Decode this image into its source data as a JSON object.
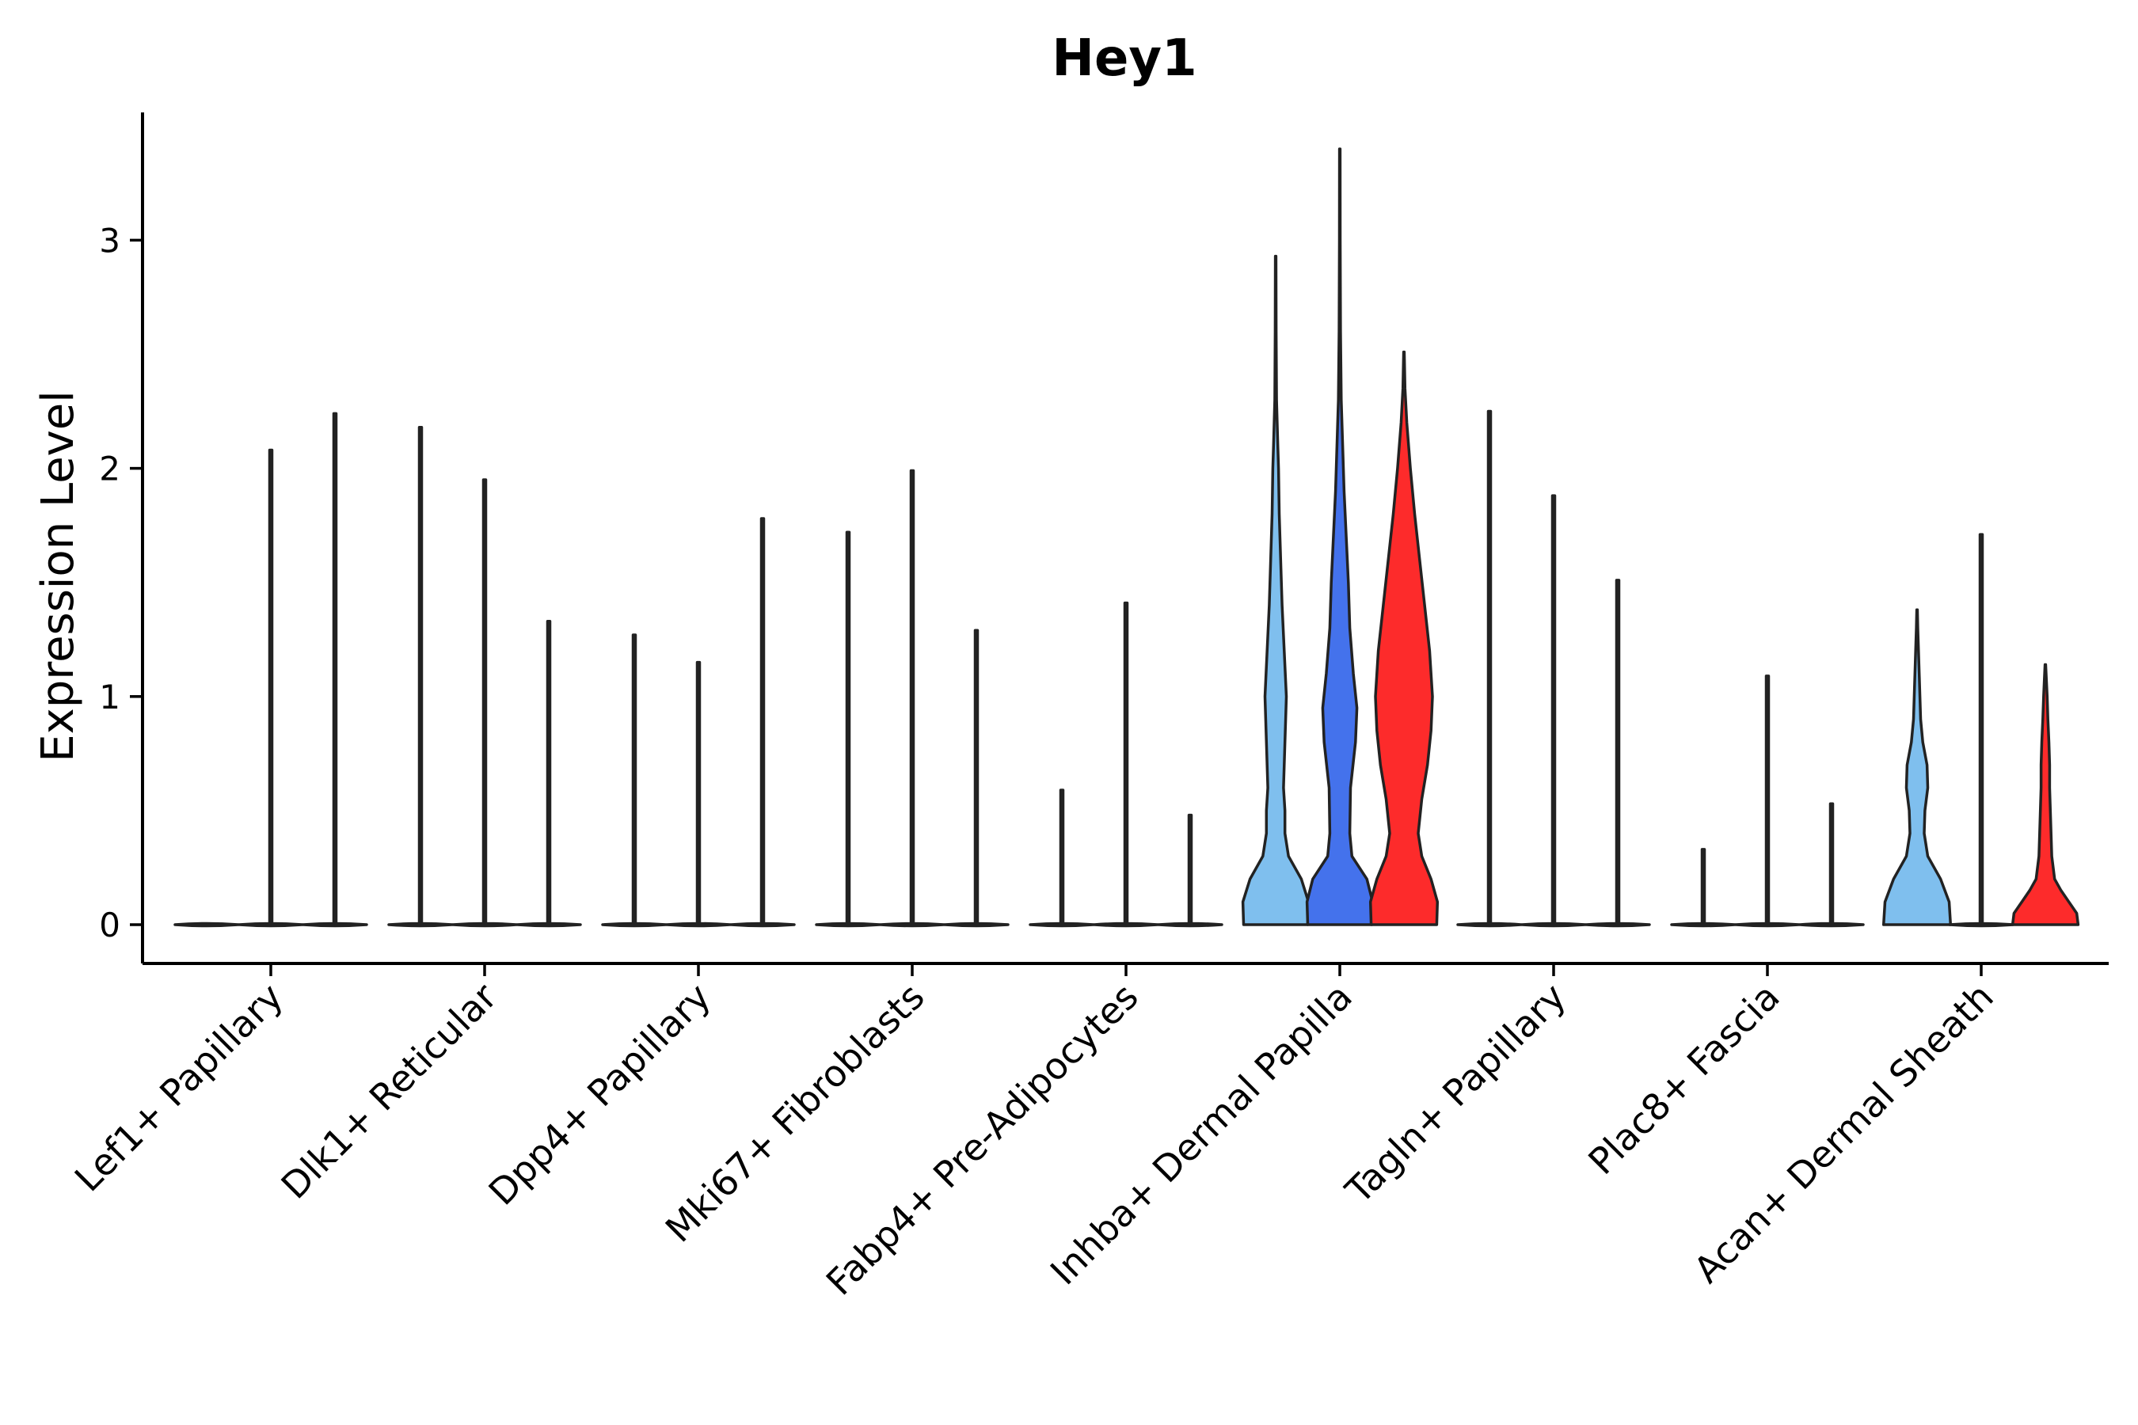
{
  "chart_data": {
    "type": "violin",
    "title": "Hey1",
    "xlabel": "",
    "ylabel": "Expression Level",
    "ylim": [
      -0.17,
      3.56
    ],
    "yticks": [
      0,
      1,
      2,
      3
    ],
    "grid": false,
    "legend": "none",
    "colors": {
      "light": "#7fbfee",
      "mid": "#4472ec",
      "red": "#fd2b2b",
      "stroke": "#222222"
    },
    "categories": [
      "Lef1+ Papillary",
      "Dlk1+ Reticular",
      "Dpp4+ Papillary",
      "Mki67+ Fibroblasts",
      "Fabp4+ Pre-Adipocytes",
      "Inhba+ Dermal Papilla",
      "Tagln+ Papillary",
      "Plac8+ Fascia",
      "Acan+ Dermal Sheath"
    ],
    "groups": [
      {
        "category": "Lef1+ Papillary",
        "violins": [
          {
            "max": 0.0,
            "color": "light",
            "shape": "flat"
          },
          {
            "max": 2.08,
            "color": "mid",
            "shape": "flat"
          },
          {
            "max": 2.24,
            "color": "red",
            "shape": "flat"
          }
        ]
      },
      {
        "category": "Dlk1+ Reticular",
        "violins": [
          {
            "max": 2.18,
            "color": "light",
            "shape": "flat"
          },
          {
            "max": 1.95,
            "color": "mid",
            "shape": "flat"
          },
          {
            "max": 1.33,
            "color": "red",
            "shape": "flat"
          }
        ]
      },
      {
        "category": "Dpp4+ Papillary",
        "violins": [
          {
            "max": 1.27,
            "color": "light",
            "shape": "flat"
          },
          {
            "max": 1.15,
            "color": "mid",
            "shape": "flat"
          },
          {
            "max": 1.78,
            "color": "red",
            "shape": "flat"
          }
        ]
      },
      {
        "category": "Mki67+ Fibroblasts",
        "violins": [
          {
            "max": 1.72,
            "color": "light",
            "shape": "flat"
          },
          {
            "max": 1.99,
            "color": "mid",
            "shape": "flat"
          },
          {
            "max": 1.29,
            "color": "red",
            "shape": "flat"
          }
        ]
      },
      {
        "category": "Fabp4+ Pre-Adipocytes",
        "violins": [
          {
            "max": 0.59,
            "color": "light",
            "shape": "flat"
          },
          {
            "max": 1.41,
            "color": "mid",
            "shape": "flat"
          },
          {
            "max": 0.48,
            "color": "red",
            "shape": "flat"
          }
        ]
      },
      {
        "category": "Inhba+ Dermal Papilla",
        "violins": [
          {
            "max": 2.93,
            "color": "light",
            "shape": "inhba1"
          },
          {
            "max": 3.4,
            "color": "mid",
            "shape": "inhba2"
          },
          {
            "max": 2.51,
            "color": "red",
            "shape": "inhba3"
          }
        ]
      },
      {
        "category": "Tagln+ Papillary",
        "violins": [
          {
            "max": 2.25,
            "color": "light",
            "shape": "flat"
          },
          {
            "max": 1.88,
            "color": "mid",
            "shape": "flat"
          },
          {
            "max": 1.51,
            "color": "red",
            "shape": "flat"
          }
        ]
      },
      {
        "category": "Plac8+ Fascia",
        "violins": [
          {
            "max": 0.33,
            "color": "light",
            "shape": "flat"
          },
          {
            "max": 1.09,
            "color": "mid",
            "shape": "flat"
          },
          {
            "max": 0.53,
            "color": "red",
            "shape": "flat"
          }
        ]
      },
      {
        "category": "Acan+ Dermal Sheath",
        "violins": [
          {
            "max": 1.38,
            "color": "light",
            "shape": "acan1"
          },
          {
            "max": 1.71,
            "color": "mid",
            "shape": "flat"
          },
          {
            "max": 1.14,
            "color": "red",
            "shape": "acan3"
          }
        ]
      }
    ],
    "shapes": {
      "inhba1": [
        [
          0,
          0.45
        ],
        [
          0.1,
          0.46
        ],
        [
          0.2,
          0.36
        ],
        [
          0.3,
          0.18
        ],
        [
          0.4,
          0.13
        ],
        [
          0.5,
          0.13
        ],
        [
          0.6,
          0.11
        ],
        [
          0.8,
          0.13
        ],
        [
          1.0,
          0.15
        ],
        [
          1.2,
          0.12
        ],
        [
          1.4,
          0.09
        ],
        [
          1.6,
          0.07
        ],
        [
          1.8,
          0.05
        ],
        [
          2.0,
          0.04
        ],
        [
          2.1,
          0.03
        ],
        [
          2.3,
          0.012
        ],
        [
          2.6,
          0.007
        ],
        [
          2.93,
          0.004
        ]
      ],
      "inhba2": [
        [
          0,
          0.45
        ],
        [
          0.1,
          0.46
        ],
        [
          0.2,
          0.38
        ],
        [
          0.3,
          0.17
        ],
        [
          0.4,
          0.14
        ],
        [
          0.6,
          0.15
        ],
        [
          0.8,
          0.22
        ],
        [
          0.95,
          0.24
        ],
        [
          1.1,
          0.19
        ],
        [
          1.3,
          0.14
        ],
        [
          1.5,
          0.12
        ],
        [
          1.7,
          0.09
        ],
        [
          1.9,
          0.06
        ],
        [
          2.1,
          0.04
        ],
        [
          2.3,
          0.02
        ],
        [
          2.6,
          0.01
        ],
        [
          3.0,
          0.006
        ],
        [
          3.4,
          0.004
        ]
      ],
      "inhba3": [
        [
          0,
          0.46
        ],
        [
          0.1,
          0.47
        ],
        [
          0.2,
          0.38
        ],
        [
          0.3,
          0.25
        ],
        [
          0.4,
          0.2
        ],
        [
          0.55,
          0.25
        ],
        [
          0.7,
          0.33
        ],
        [
          0.85,
          0.38
        ],
        [
          1.0,
          0.4
        ],
        [
          1.2,
          0.36
        ],
        [
          1.4,
          0.29
        ],
        [
          1.6,
          0.22
        ],
        [
          1.8,
          0.15
        ],
        [
          2.0,
          0.09
        ],
        [
          2.2,
          0.04
        ],
        [
          2.35,
          0.015
        ],
        [
          2.51,
          0.004
        ]
      ],
      "acan1": [
        [
          0,
          0.47
        ],
        [
          0.1,
          0.45
        ],
        [
          0.2,
          0.33
        ],
        [
          0.3,
          0.15
        ],
        [
          0.4,
          0.1
        ],
        [
          0.5,
          0.11
        ],
        [
          0.6,
          0.15
        ],
        [
          0.7,
          0.14
        ],
        [
          0.8,
          0.08
        ],
        [
          0.9,
          0.05
        ],
        [
          1.0,
          0.04
        ],
        [
          1.1,
          0.03
        ],
        [
          1.2,
          0.02
        ],
        [
          1.3,
          0.01
        ],
        [
          1.38,
          0.004
        ]
      ],
      "acan3": [
        [
          0,
          0.46
        ],
        [
          0.05,
          0.44
        ],
        [
          0.1,
          0.33
        ],
        [
          0.15,
          0.22
        ],
        [
          0.2,
          0.13
        ],
        [
          0.3,
          0.09
        ],
        [
          0.4,
          0.08
        ],
        [
          0.5,
          0.07
        ],
        [
          0.6,
          0.06
        ],
        [
          0.7,
          0.06
        ],
        [
          0.8,
          0.05
        ],
        [
          0.9,
          0.035
        ],
        [
          1.0,
          0.025
        ],
        [
          1.14,
          0.004
        ]
      ]
    }
  }
}
